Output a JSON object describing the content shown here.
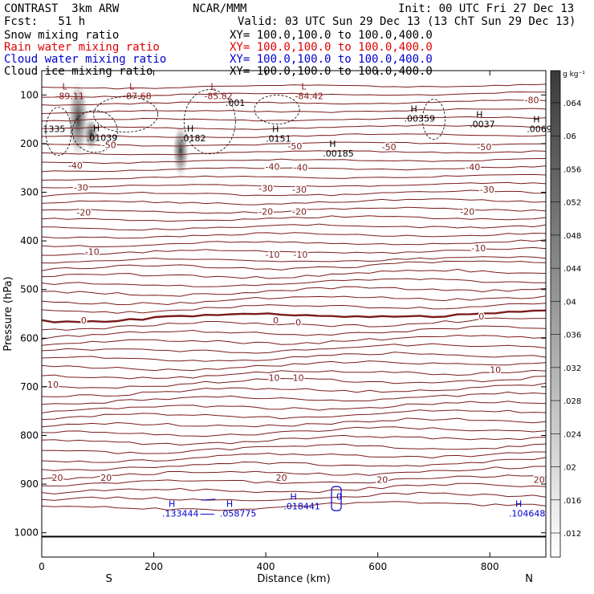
{
  "header": {
    "left_line1": "CONTRAST  3km ARW",
    "left_line2": "Fcst:   51 h",
    "center_line1": "NCAR/MMM",
    "init": "Init: 00 UTC Fri 27 Dec 13",
    "valid": "Valid: 03 UTC Sun 29 Dec 13 (13 ChT Sun 29 Dec 13)"
  },
  "fields": [
    {
      "name": "Snow mixing ratio",
      "xy": "XY= 100.0,100.0 to 100.0,400.0",
      "color": "#000000"
    },
    {
      "name": "Rain water mixing ratio",
      "xy": "XY= 100.0,100.0 to 100.0,400.0",
      "color": "#e00000"
    },
    {
      "name": "Cloud water mixing ratio",
      "xy": "XY= 100.0,100.0 to 100.0,400.0",
      "color": "#0000cc"
    },
    {
      "name": "Cloud ice mixing ratio",
      "xy": "XY= 100.0,100.0 to 100.0,400.0",
      "color": "#000000"
    }
  ],
  "chart_data": {
    "type": "contour",
    "xlabel": "Distance (km)",
    "ylabel": "Pressure (hPa)",
    "xlim": [
      0,
      900
    ],
    "ylim": [
      1050,
      50
    ],
    "x_ticks": [
      0,
      200,
      400,
      600,
      800
    ],
    "y_ticks": [
      100,
      200,
      300,
      400,
      500,
      600,
      700,
      800,
      900,
      1000
    ],
    "x_end_labels": {
      "left": "S",
      "right": "N"
    },
    "colorbar": {
      "unit": "g kg⁻¹",
      "ticks": [
        ".064",
        ".06",
        ".056",
        ".052",
        ".048",
        ".044",
        ".04",
        ".036",
        ".032",
        ".028",
        ".024",
        ".02",
        ".016",
        ".012"
      ]
    },
    "temperature_contour_labels": [
      {
        "text": "-80",
        "x": 875,
        "p": 110
      },
      {
        "text": "-50",
        "x": 120,
        "p": 203
      },
      {
        "text": "-50",
        "x": 452,
        "p": 205
      },
      {
        "text": "-50",
        "x": 620,
        "p": 207
      },
      {
        "text": "-50",
        "x": 790,
        "p": 207
      },
      {
        "text": "-40",
        "x": 60,
        "p": 245
      },
      {
        "text": "-40",
        "x": 412,
        "p": 247
      },
      {
        "text": "-40",
        "x": 462,
        "p": 249
      },
      {
        "text": "-40",
        "x": 770,
        "p": 248
      },
      {
        "text": "-30",
        "x": 70,
        "p": 290
      },
      {
        "text": "-30",
        "x": 400,
        "p": 292
      },
      {
        "text": "-30",
        "x": 460,
        "p": 294
      },
      {
        "text": "-30",
        "x": 795,
        "p": 294
      },
      {
        "text": "-20",
        "x": 75,
        "p": 341
      },
      {
        "text": "-20",
        "x": 400,
        "p": 340
      },
      {
        "text": "-20",
        "x": 460,
        "p": 340
      },
      {
        "text": "-20",
        "x": 760,
        "p": 340
      },
      {
        "text": "-10",
        "x": 90,
        "p": 422
      },
      {
        "text": "-10",
        "x": 412,
        "p": 428
      },
      {
        "text": "-10",
        "x": 462,
        "p": 428
      },
      {
        "text": "-10",
        "x": 780,
        "p": 415
      },
      {
        "text": "0",
        "x": 75,
        "p": 563
      },
      {
        "text": "0",
        "x": 418,
        "p": 563
      },
      {
        "text": "0",
        "x": 458,
        "p": 567
      },
      {
        "text": "0",
        "x": 785,
        "p": 555
      },
      {
        "text": "10",
        "x": 20,
        "p": 695
      },
      {
        "text": "10",
        "x": 415,
        "p": 681
      },
      {
        "text": "10",
        "x": 458,
        "p": 681
      },
      {
        "text": "10",
        "x": 810,
        "p": 665
      },
      {
        "text": "20",
        "x": 28,
        "p": 887
      },
      {
        "text": "20",
        "x": 115,
        "p": 887
      },
      {
        "text": "20",
        "x": 428,
        "p": 887
      },
      {
        "text": "20",
        "x": 608,
        "p": 891
      },
      {
        "text": "20",
        "x": 888,
        "p": 891
      }
    ],
    "extrema_labels": [
      {
        "mark": "L",
        "value": "-89.11",
        "x": 25,
        "p": 82,
        "color": "#8b1a1a"
      },
      {
        "mark": "L",
        "value": "-87.68",
        "x": 145,
        "p": 82,
        "color": "#8b1a1a"
      },
      {
        "mark": "L",
        "value": "-85.82",
        "x": 290,
        "p": 82,
        "color": "#8b1a1a"
      },
      {
        "mark": "L",
        "value": "-84.42",
        "x": 452,
        "p": 82,
        "color": "#8b1a1a"
      },
      {
        "mark": "",
        "value": ".001",
        "x": 328,
        "p": 116,
        "color": "#000000"
      },
      {
        "mark": "",
        "value": "1335",
        "x": 2,
        "p": 170,
        "color": "#000000"
      },
      {
        "mark": "H",
        "value": ".01039",
        "x": 80,
        "p": 168,
        "color": "#000000"
      },
      {
        "mark": "H",
        "value": ".0182",
        "x": 248,
        "p": 169,
        "color": "#000000"
      },
      {
        "mark": "H",
        "value": ".0151",
        "x": 400,
        "p": 170,
        "color": "#000000"
      },
      {
        "mark": "H",
        "value": ".00185",
        "x": 502,
        "p": 200,
        "color": "#000000"
      },
      {
        "mark": "H",
        "value": ".00359",
        "x": 647,
        "p": 128,
        "color": "#000000"
      },
      {
        "mark": "H",
        "value": ".0037",
        "x": 764,
        "p": 140,
        "color": "#000000"
      },
      {
        "mark": "H",
        "value": ".0069",
        "x": 866,
        "p": 150,
        "color": "#000000"
      },
      {
        "mark": "H",
        "value": ".133444",
        "x": 215,
        "p": 940,
        "color": "#0000cc"
      },
      {
        "mark": "H",
        "value": ".058775",
        "x": 318,
        "p": 940,
        "color": "#0000cc"
      },
      {
        "mark": "H",
        "value": ".018441",
        "x": 432,
        "p": 925,
        "color": "#0000cc"
      },
      {
        "mark": "H",
        "value": ".104648",
        "x": 834,
        "p": 940,
        "color": "#0000cc"
      },
      {
        "mark": "",
        "value": "0",
        "x": 526,
        "p": 925,
        "color": "#0000cc"
      }
    ]
  }
}
